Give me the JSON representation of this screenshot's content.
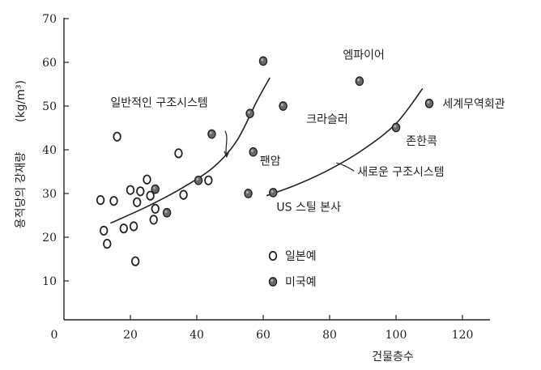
{
  "chart_data": {
    "type": "scatter",
    "xlabel": "건물층수",
    "ylabel": "용적당의 강재량",
    "ylabel_unit": "(kg/m³)",
    "xlim": [
      0,
      130
    ],
    "ylim": [
      5,
      70
    ],
    "xticks": [
      0,
      20,
      40,
      60,
      80,
      100,
      120
    ],
    "yticks": [
      10,
      20,
      30,
      40,
      50,
      60,
      70
    ],
    "grid": false,
    "legend_position": "bottom-center",
    "series": [
      {
        "name": "일본예",
        "marker": "open-circle",
        "points": [
          [
            11,
            28.5
          ],
          [
            12,
            21.5
          ],
          [
            13,
            18.5
          ],
          [
            15,
            28.3
          ],
          [
            16,
            43
          ],
          [
            18,
            22
          ],
          [
            20,
            30.8
          ],
          [
            21,
            22.5
          ],
          [
            21.5,
            14.5
          ],
          [
            22,
            28
          ],
          [
            23,
            30.5
          ],
          [
            25,
            33.2
          ],
          [
            26,
            29.5
          ],
          [
            27,
            24
          ],
          [
            27.5,
            26.5
          ],
          [
            34.5,
            39.2
          ],
          [
            36,
            29.7
          ],
          [
            43.5,
            33
          ]
        ]
      },
      {
        "name": "미국예",
        "marker": "filled-circle",
        "points": [
          [
            27.5,
            31
          ],
          [
            31,
            25.6
          ],
          [
            40.5,
            33
          ],
          [
            44.5,
            43.6
          ],
          [
            55.5,
            30
          ],
          [
            56,
            48.3
          ],
          [
            57,
            39.5
          ],
          [
            60,
            60.3
          ],
          [
            66,
            50
          ],
          [
            63,
            30.2
          ],
          [
            89,
            55.7
          ],
          [
            100,
            45.1
          ],
          [
            110,
            50.6
          ]
        ]
      }
    ],
    "curves": [
      {
        "label": "일반적인 구조시스템",
        "points": [
          [
            14,
            23.2
          ],
          [
            25,
            27
          ],
          [
            35,
            31
          ],
          [
            45,
            36
          ],
          [
            52,
            42
          ],
          [
            58,
            51
          ],
          [
            62,
            56.5
          ]
        ]
      },
      {
        "label": "새로운 구조시스템",
        "points": [
          [
            61,
            29.5
          ],
          [
            70,
            32
          ],
          [
            80,
            35.5
          ],
          [
            90,
            40
          ],
          [
            100,
            46
          ],
          [
            108,
            54
          ]
        ]
      }
    ],
    "annotations": [
      {
        "text": "엠파이어",
        "x": 84,
        "y": 61.8
      },
      {
        "text": "세계무역회관",
        "x": 114,
        "y": 50.6
      },
      {
        "text": "크라슬러",
        "x": 73,
        "y": 47
      },
      {
        "text": "존한콕",
        "x": 103,
        "y": 42
      },
      {
        "text": "팬암",
        "x": 59,
        "y": 37.5
      },
      {
        "text": "US 스틸 본사",
        "x": 64,
        "y": 26.9
      },
      {
        "text": "일반적인 구조시스템",
        "x": 14,
        "y": 50.8
      }
    ],
    "pointer_labels": [
      {
        "curve": "일반적인 구조시스템",
        "text": "일반적인 구조시스템",
        "tip": [
          49,
          38.4
        ]
      },
      {
        "curve": "새로운 구조시스템",
        "text": "새로운 구조시스템",
        "tip": [
          82,
          37
        ]
      }
    ]
  }
}
